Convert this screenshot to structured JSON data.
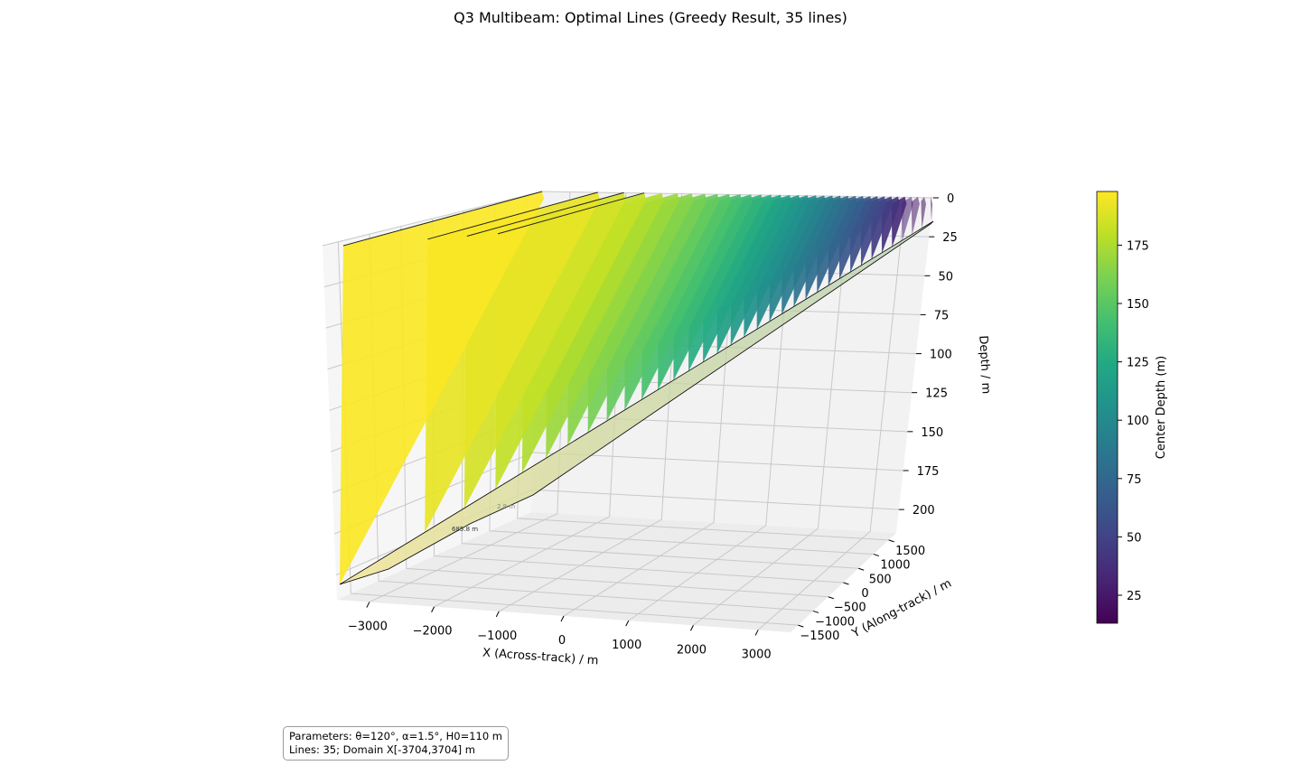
{
  "chart_data": {
    "type": "3d-surface",
    "title": "Q3 Multibeam: Optimal Lines (Greedy Result, 35 lines)",
    "xlabel": "X (Across-track) / m",
    "ylabel": "Y (Along-track) / m",
    "zlabel": "Depth / m",
    "x_ticks": [
      "−3000",
      "−2000",
      "−1000",
      "0",
      "1000",
      "2000",
      "3000"
    ],
    "y_ticks": [
      "−1500",
      "−1000",
      "−500",
      "0",
      "500",
      "1000",
      "1500"
    ],
    "z_ticks": [
      "0",
      "25",
      "50",
      "75",
      "100",
      "125",
      "150",
      "175",
      "200"
    ],
    "xlim": [
      -3704,
      3704
    ],
    "ylim": [
      -1852,
      1852
    ],
    "zlim": [
      0,
      215
    ],
    "z_inverted": true,
    "colormap": "viridis",
    "colorbar": {
      "label": "Center Depth (m)",
      "min": 13,
      "max": 198,
      "ticks": [
        "25",
        "50",
        "75",
        "100",
        "125",
        "150",
        "175"
      ]
    },
    "lines": {
      "count": 35,
      "center_depth_range": [
        14,
        197
      ]
    },
    "annotation_fragments": [
      "2.8 m",
      "685.8 m"
    ],
    "grid": true
  },
  "info_box": {
    "line1": "Parameters: θ=120°, α=1.5°, H0=110 m",
    "line2": "Lines: 35; Domain X[-3704,3704] m"
  }
}
